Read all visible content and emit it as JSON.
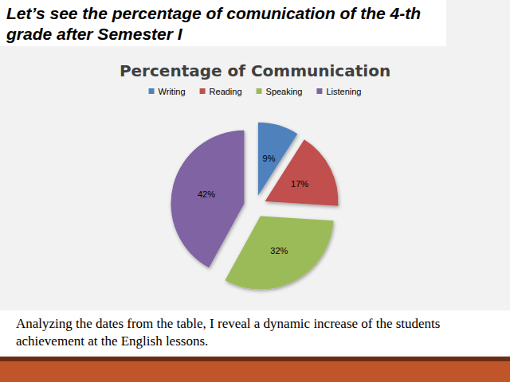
{
  "slide": {
    "heading": "Let’s see the percentage of comunication of the 4-th grade after Semester I",
    "caption": "Analyzing the dates from the table,  I  reveal a dynamic increase  of the students achievement at the  English lessons."
  },
  "chart_data": {
    "type": "pie",
    "title": "Percentage of Communication",
    "categories": [
      "Writing",
      "Reading",
      "Speaking",
      "Listening"
    ],
    "values": [
      9,
      17,
      32,
      42
    ],
    "value_labels": [
      "9%",
      "17%",
      "32%",
      "42%"
    ],
    "colors": [
      "#4f81bd",
      "#c0504d",
      "#9bbb59",
      "#8064a2"
    ],
    "legend": "top",
    "data_labels": true
  }
}
